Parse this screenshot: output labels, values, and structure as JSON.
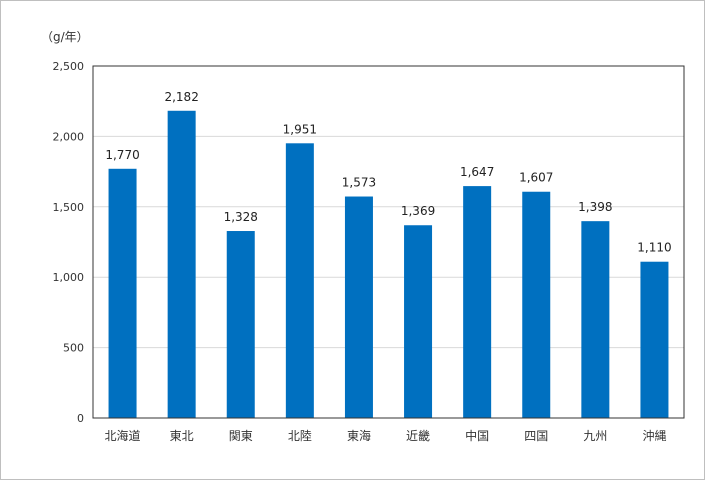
{
  "chart_data": {
    "type": "bar",
    "unit_label": "（g/年）",
    "categories": [
      "北海道",
      "東北",
      "関東",
      "北陸",
      "東海",
      "近畿",
      "中国",
      "四国",
      "九州",
      "沖縄"
    ],
    "values": [
      1770,
      2182,
      1328,
      1951,
      1573,
      1369,
      1647,
      1607,
      1398,
      1110
    ],
    "value_labels": [
      "1,770",
      "2,182",
      "1,328",
      "1,951",
      "1,573",
      "1,369",
      "1,647",
      "1,607",
      "1,398",
      "1,110"
    ],
    "ylim": [
      0,
      2500
    ],
    "yticks": [
      0,
      500,
      1000,
      1500,
      2000,
      2500
    ],
    "ytick_labels": [
      "0",
      "500",
      "1,000",
      "1,500",
      "2,000",
      "2,500"
    ],
    "grid": true,
    "bar_color": "#0070c0",
    "grid_color": "#d9d9d9"
  }
}
